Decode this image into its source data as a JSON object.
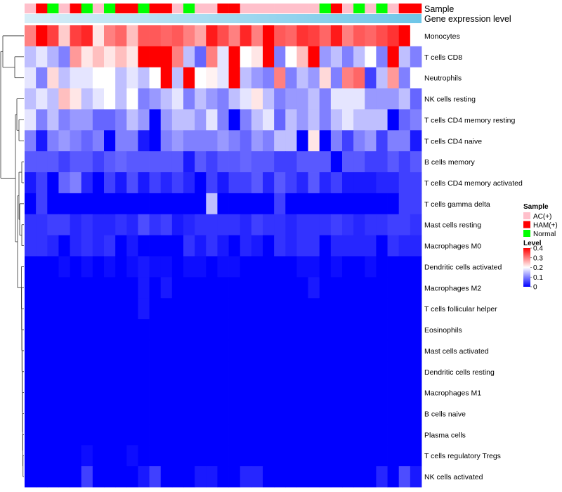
{
  "chart_data": {
    "type": "heatmap",
    "annotation_labels": [
      "Sample",
      "Gene expression level"
    ],
    "sample_groups": [
      "AC(+)",
      "HAM(+)",
      "Normal",
      "AC(+)",
      "HAM(+)",
      "Normal",
      "AC(+)",
      "Normal",
      "HAM(+)",
      "HAM(+)",
      "Normal",
      "HAM(+)",
      "HAM(+)",
      "AC(+)",
      "Normal",
      "AC(+)",
      "AC(+)",
      "HAM(+)",
      "HAM(+)",
      "AC(+)",
      "AC(+)",
      "AC(+)",
      "AC(+)",
      "AC(+)",
      "AC(+)",
      "AC(+)",
      "Normal",
      "HAM(+)",
      "AC(+)",
      "Normal",
      "AC(+)",
      "Normal",
      "AC(+)",
      "HAM(+)",
      "HAM(+)"
    ],
    "rows": [
      "Monocytes",
      "T cells CD8",
      "Neutrophils",
      "NK cells resting",
      "T cells CD4 memory resting",
      "T cells CD4 naive",
      "B cells memory",
      "T cells CD4 memory activated",
      "T cells gamma delta",
      "Mast cells resting",
      "Macrophages M0",
      "Dendritic cells activated",
      "Macrophages M2",
      "T cells follicular helper",
      "Eosinophils",
      "Mast cells activated",
      "Dendritic cells resting",
      "Macrophages M1",
      "B cells naive",
      "Plasma cells",
      "T cells regulatory  Tregs",
      "NK cells activated"
    ],
    "values": [
      [
        0.3,
        0.4,
        0.35,
        0.24,
        0.35,
        0.37,
        0.22,
        0.3,
        0.32,
        0.25,
        0.33,
        0.33,
        0.32,
        0.33,
        0.3,
        0.27,
        0.38,
        0.34,
        0.3,
        0.37,
        0.3,
        0.4,
        0.33,
        0.32,
        0.36,
        0.35,
        0.32,
        0.38,
        0.3,
        0.33,
        0.32,
        0.34,
        0.36,
        0.4,
        0.2
      ],
      [
        0.15,
        0.18,
        0.14,
        0.1,
        0.28,
        0.22,
        0.25,
        0.22,
        0.25,
        0.22,
        0.4,
        0.4,
        0.4,
        0.3,
        0.15,
        0.08,
        0.3,
        0.18,
        0.4,
        0.2,
        0.22,
        0.4,
        0.1,
        0.2,
        0.25,
        0.4,
        0.12,
        0.15,
        0.1,
        0.15,
        0.2,
        0.1,
        0.4,
        0.15,
        0.1
      ],
      [
        0.18,
        0.1,
        0.23,
        0.15,
        0.18,
        0.18,
        0.2,
        0.2,
        0.15,
        0.18,
        0.15,
        0.2,
        0.4,
        0.15,
        0.4,
        0.2,
        0.21,
        0.18,
        0.4,
        0.15,
        0.12,
        0.1,
        0.3,
        0.1,
        0.15,
        0.12,
        0.23,
        0.1,
        0.3,
        0.32,
        0.05,
        0.15,
        0.28,
        0.1,
        0.2
      ],
      [
        0.15,
        0.18,
        0.15,
        0.25,
        0.22,
        0.15,
        0.18,
        0.2,
        0.15,
        0.2,
        0.1,
        0.12,
        0.15,
        0.18,
        0.1,
        0.15,
        0.12,
        0.1,
        0.15,
        0.18,
        0.22,
        0.15,
        0.1,
        0.12,
        0.12,
        0.15,
        0.1,
        0.18,
        0.18,
        0.18,
        0.12,
        0.12,
        0.12,
        0.15,
        0.08
      ],
      [
        0.18,
        0.1,
        0.15,
        0.1,
        0.12,
        0.12,
        0.08,
        0.08,
        0.1,
        0.15,
        0.12,
        0.0,
        0.12,
        0.15,
        0.15,
        0.12,
        0.18,
        0.1,
        0.0,
        0.1,
        0.15,
        0.18,
        0.08,
        0.15,
        0.12,
        0.15,
        0.1,
        0.15,
        0.18,
        0.15,
        0.15,
        0.15,
        0.0,
        0.08,
        0.1
      ],
      [
        0.1,
        0.02,
        0.1,
        0.12,
        0.1,
        0.08,
        0.1,
        0.0,
        0.1,
        0.1,
        0.02,
        0.0,
        0.1,
        0.12,
        0.1,
        0.1,
        0.1,
        0.12,
        0.1,
        0.08,
        0.12,
        0.1,
        0.15,
        0.15,
        0.0,
        0.22,
        0.0,
        0.1,
        0.05,
        0.1,
        0.12,
        0.05,
        0.1,
        0.1,
        0.02
      ],
      [
        0.07,
        0.07,
        0.07,
        0.05,
        0.07,
        0.07,
        0.05,
        0.07,
        0.08,
        0.07,
        0.07,
        0.07,
        0.07,
        0.07,
        0.02,
        0.07,
        0.05,
        0.07,
        0.07,
        0.08,
        0.07,
        0.07,
        0.05,
        0.05,
        0.07,
        0.07,
        0.07,
        0.0,
        0.07,
        0.07,
        0.05,
        0.05,
        0.07,
        0.05,
        0.07
      ],
      [
        0.02,
        0.05,
        0.0,
        0.08,
        0.1,
        0.03,
        0.0,
        0.05,
        0.02,
        0.06,
        0.02,
        0.05,
        0.03,
        0.05,
        0.03,
        0.0,
        0.05,
        0.02,
        0.05,
        0.05,
        0.07,
        0.03,
        0.07,
        0.05,
        0.03,
        0.07,
        0.03,
        0.05,
        0.02,
        0.02,
        0.02,
        0.03,
        0.03,
        0.05,
        0.05
      ],
      [
        0.0,
        0.05,
        0.0,
        0.0,
        0.0,
        0.0,
        0.0,
        0.0,
        0.0,
        0.0,
        0.0,
        0.0,
        0.0,
        0.0,
        0.0,
        0.0,
        0.15,
        0.0,
        0.0,
        0.0,
        0.0,
        0.0,
        0.05,
        0.0,
        0.0,
        0.0,
        0.0,
        0.0,
        0.0,
        0.0,
        0.0,
        0.0,
        0.0,
        0.05,
        0.05
      ],
      [
        0.04,
        0.04,
        0.05,
        0.05,
        0.03,
        0.04,
        0.03,
        0.03,
        0.04,
        0.03,
        0.06,
        0.04,
        0.05,
        0.02,
        0.03,
        0.04,
        0.04,
        0.04,
        0.04,
        0.03,
        0.05,
        0.04,
        0.04,
        0.03,
        0.04,
        0.04,
        0.04,
        0.05,
        0.04,
        0.03,
        0.04,
        0.04,
        0.05,
        0.05,
        0.04
      ],
      [
        0.04,
        0.04,
        0.03,
        0.0,
        0.03,
        0.04,
        0.03,
        0.04,
        0.0,
        0.02,
        0.0,
        0.0,
        0.0,
        0.0,
        0.04,
        0.02,
        0.04,
        0.02,
        0.0,
        0.03,
        0.02,
        0.0,
        0.04,
        0.03,
        0.04,
        0.04,
        0.0,
        0.03,
        0.03,
        0.03,
        0.03,
        0.0,
        0.04,
        0.03,
        0.03
      ],
      [
        0.0,
        0.0,
        0.0,
        0.01,
        0.0,
        0.01,
        0.0,
        0.01,
        0.0,
        0.01,
        0.02,
        0.01,
        0.01,
        0.0,
        0.01,
        0.01,
        0.0,
        0.01,
        0.01,
        0.0,
        0.0,
        0.0,
        0.0,
        0.0,
        0.01,
        0.01,
        0.0,
        0.01,
        0.0,
        0.0,
        0.01,
        0.0,
        0.0,
        0.0,
        0.0
      ],
      [
        0.0,
        0.0,
        0.0,
        0.0,
        0.0,
        0.0,
        0.0,
        0.0,
        0.0,
        0.0,
        0.02,
        0.0,
        0.02,
        0.0,
        0.0,
        0.0,
        0.0,
        0.0,
        0.0,
        0.0,
        0.0,
        0.0,
        0.0,
        0.0,
        0.0,
        0.02,
        0.0,
        0.0,
        0.0,
        0.0,
        0.0,
        0.0,
        0.0,
        0.0,
        0.0
      ],
      [
        0.0,
        0.0,
        0.0,
        0.0,
        0.0,
        0.0,
        0.0,
        0.0,
        0.0,
        0.0,
        0.02,
        0.0,
        0.0,
        0.0,
        0.0,
        0.0,
        0.0,
        0.0,
        0.0,
        0.0,
        0.0,
        0.0,
        0.0,
        0.0,
        0.0,
        0.0,
        0.0,
        0.0,
        0.0,
        0.0,
        0.0,
        0.0,
        0.0,
        0.0,
        0.0
      ],
      [
        0.0,
        0.0,
        0.0,
        0.0,
        0.0,
        0.0,
        0.0,
        0.0,
        0.0,
        0.0,
        0.0,
        0.0,
        0.0,
        0.0,
        0.0,
        0.0,
        0.0,
        0.0,
        0.0,
        0.0,
        0.0,
        0.0,
        0.0,
        0.0,
        0.0,
        0.0,
        0.0,
        0.0,
        0.0,
        0.0,
        0.0,
        0.0,
        0.0,
        0.0,
        0.0
      ],
      [
        0.0,
        0.0,
        0.0,
        0.0,
        0.0,
        0.0,
        0.0,
        0.0,
        0.0,
        0.0,
        0.0,
        0.0,
        0.0,
        0.0,
        0.0,
        0.0,
        0.0,
        0.0,
        0.0,
        0.0,
        0.0,
        0.0,
        0.0,
        0.0,
        0.0,
        0.0,
        0.0,
        0.0,
        0.0,
        0.0,
        0.0,
        0.0,
        0.0,
        0.0,
        0.0
      ],
      [
        0.0,
        0.0,
        0.0,
        0.0,
        0.0,
        0.0,
        0.0,
        0.0,
        0.0,
        0.0,
        0.0,
        0.0,
        0.0,
        0.0,
        0.0,
        0.0,
        0.0,
        0.0,
        0.0,
        0.0,
        0.0,
        0.0,
        0.0,
        0.0,
        0.0,
        0.0,
        0.0,
        0.0,
        0.0,
        0.0,
        0.0,
        0.0,
        0.0,
        0.0,
        0.0
      ],
      [
        0.0,
        0.0,
        0.0,
        0.0,
        0.0,
        0.0,
        0.0,
        0.0,
        0.0,
        0.0,
        0.0,
        0.0,
        0.0,
        0.0,
        0.0,
        0.0,
        0.0,
        0.0,
        0.0,
        0.0,
        0.0,
        0.0,
        0.0,
        0.0,
        0.0,
        0.0,
        0.0,
        0.0,
        0.0,
        0.0,
        0.0,
        0.0,
        0.0,
        0.0,
        0.0
      ],
      [
        0.0,
        0.0,
        0.0,
        0.0,
        0.0,
        0.0,
        0.0,
        0.0,
        0.0,
        0.0,
        0.0,
        0.0,
        0.0,
        0.0,
        0.0,
        0.0,
        0.0,
        0.0,
        0.0,
        0.0,
        0.0,
        0.0,
        0.0,
        0.0,
        0.0,
        0.0,
        0.0,
        0.0,
        0.0,
        0.0,
        0.0,
        0.0,
        0.0,
        0.0,
        0.0
      ],
      [
        0.0,
        0.0,
        0.0,
        0.0,
        0.0,
        0.0,
        0.0,
        0.0,
        0.0,
        0.0,
        0.0,
        0.0,
        0.0,
        0.0,
        0.0,
        0.0,
        0.0,
        0.0,
        0.0,
        0.0,
        0.0,
        0.0,
        0.0,
        0.0,
        0.0,
        0.0,
        0.0,
        0.0,
        0.0,
        0.0,
        0.0,
        0.0,
        0.0,
        0.0,
        0.0
      ],
      [
        0.0,
        0.0,
        0.0,
        0.0,
        0.0,
        0.01,
        0.0,
        0.0,
        0.0,
        0.01,
        0.0,
        0.0,
        0.0,
        0.0,
        0.0,
        0.0,
        0.0,
        0.0,
        0.0,
        0.0,
        0.0,
        0.0,
        0.0,
        0.0,
        0.0,
        0.0,
        0.0,
        0.0,
        0.0,
        0.0,
        0.0,
        0.0,
        0.0,
        0.0,
        0.0
      ],
      [
        0.0,
        0.0,
        0.0,
        0.0,
        0.0,
        0.05,
        0.0,
        0.0,
        0.0,
        0.0,
        0.02,
        0.05,
        0.0,
        0.0,
        0.0,
        0.02,
        0.02,
        0.0,
        0.0,
        0.03,
        0.03,
        0.0,
        0.0,
        0.0,
        0.0,
        0.0,
        0.0,
        0.0,
        0.0,
        0.0,
        0.0,
        0.03,
        0.0,
        0.06,
        0.02
      ]
    ],
    "legend": {
      "sample_title": "Sample",
      "sample_entries": [
        "AC(+)",
        "HAM(+)",
        "Normal"
      ],
      "level_title": "Level",
      "level_ticks": [
        "0.4",
        "0.3",
        "0.2",
        "0.1",
        "0"
      ],
      "level_min": 0,
      "level_max": 0.4
    },
    "colors": {
      "low": "#0000ff",
      "mid": "#ffffff",
      "high": "#ff0000",
      "AC(+)": "#ffc0cb",
      "HAM(+)": "#ff0000",
      "Normal": "#00ff00",
      "expression_bar": "#6ec6e8"
    }
  }
}
